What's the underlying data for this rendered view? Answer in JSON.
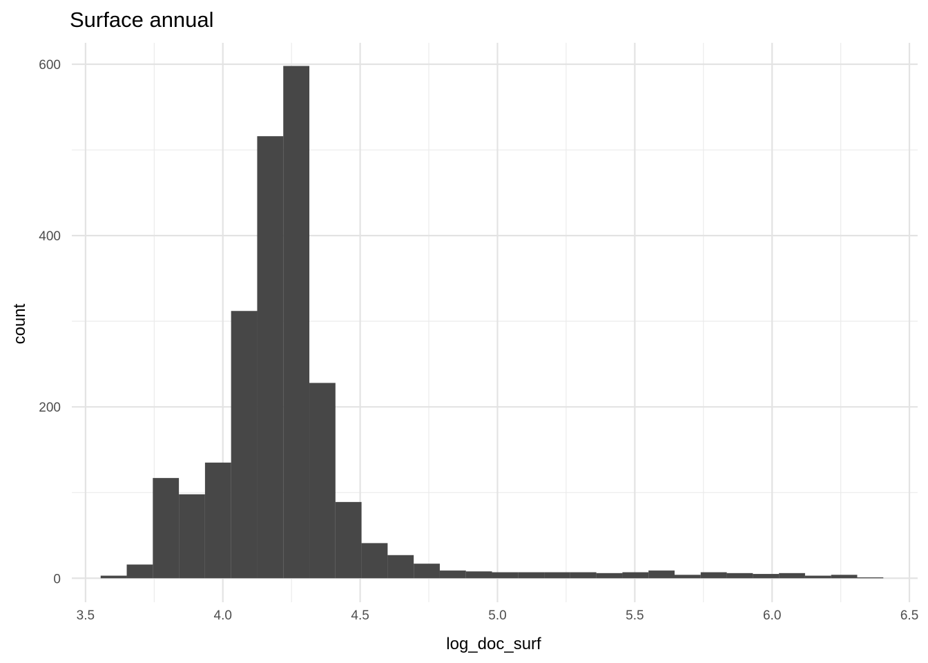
{
  "chart_data": {
    "type": "bar",
    "subtype": "histogram",
    "title": "Surface annual",
    "xlabel": "log_doc_surf",
    "ylabel": "count",
    "xlim": [
      3.45,
      6.53
    ],
    "ylim": [
      -28,
      625
    ],
    "x_ticks": [
      3.5,
      4.0,
      4.5,
      5.0,
      5.5,
      6.0,
      6.5
    ],
    "x_tick_labels": [
      "3.5",
      "4.0",
      "4.5",
      "5.0",
      "5.5",
      "6.0",
      "6.5"
    ],
    "y_ticks": [
      0,
      200,
      400,
      600
    ],
    "y_tick_labels": [
      "0",
      "200",
      "400",
      "600"
    ],
    "grid": true,
    "bar_color": "#474747",
    "bin_width": 0.095,
    "bins": [
      {
        "x0": 3.555,
        "x1": 3.65,
        "count": 3
      },
      {
        "x0": 3.65,
        "x1": 3.745,
        "count": 16
      },
      {
        "x0": 3.745,
        "x1": 3.84,
        "count": 117
      },
      {
        "x0": 3.84,
        "x1": 3.935,
        "count": 98
      },
      {
        "x0": 3.935,
        "x1": 4.03,
        "count": 135
      },
      {
        "x0": 4.03,
        "x1": 4.125,
        "count": 312
      },
      {
        "x0": 4.125,
        "x1": 4.22,
        "count": 516
      },
      {
        "x0": 4.22,
        "x1": 4.315,
        "count": 598
      },
      {
        "x0": 4.315,
        "x1": 4.41,
        "count": 228
      },
      {
        "x0": 4.41,
        "x1": 4.505,
        "count": 89
      },
      {
        "x0": 4.505,
        "x1": 4.6,
        "count": 41
      },
      {
        "x0": 4.6,
        "x1": 4.695,
        "count": 27
      },
      {
        "x0": 4.695,
        "x1": 4.79,
        "count": 17
      },
      {
        "x0": 4.79,
        "x1": 4.885,
        "count": 9
      },
      {
        "x0": 4.885,
        "x1": 4.98,
        "count": 8
      },
      {
        "x0": 4.98,
        "x1": 5.075,
        "count": 7
      },
      {
        "x0": 5.075,
        "x1": 5.17,
        "count": 7
      },
      {
        "x0": 5.17,
        "x1": 5.265,
        "count": 7
      },
      {
        "x0": 5.265,
        "x1": 5.36,
        "count": 7
      },
      {
        "x0": 5.36,
        "x1": 5.455,
        "count": 6
      },
      {
        "x0": 5.455,
        "x1": 5.55,
        "count": 7
      },
      {
        "x0": 5.55,
        "x1": 5.645,
        "count": 9
      },
      {
        "x0": 5.645,
        "x1": 5.74,
        "count": 4
      },
      {
        "x0": 5.74,
        "x1": 5.835,
        "count": 7
      },
      {
        "x0": 5.835,
        "x1": 5.93,
        "count": 6
      },
      {
        "x0": 5.93,
        "x1": 6.025,
        "count": 5
      },
      {
        "x0": 6.025,
        "x1": 6.12,
        "count": 6
      },
      {
        "x0": 6.12,
        "x1": 6.215,
        "count": 3
      },
      {
        "x0": 6.215,
        "x1": 6.31,
        "count": 4
      },
      {
        "x0": 6.31,
        "x1": 6.405,
        "count": 1
      }
    ]
  }
}
